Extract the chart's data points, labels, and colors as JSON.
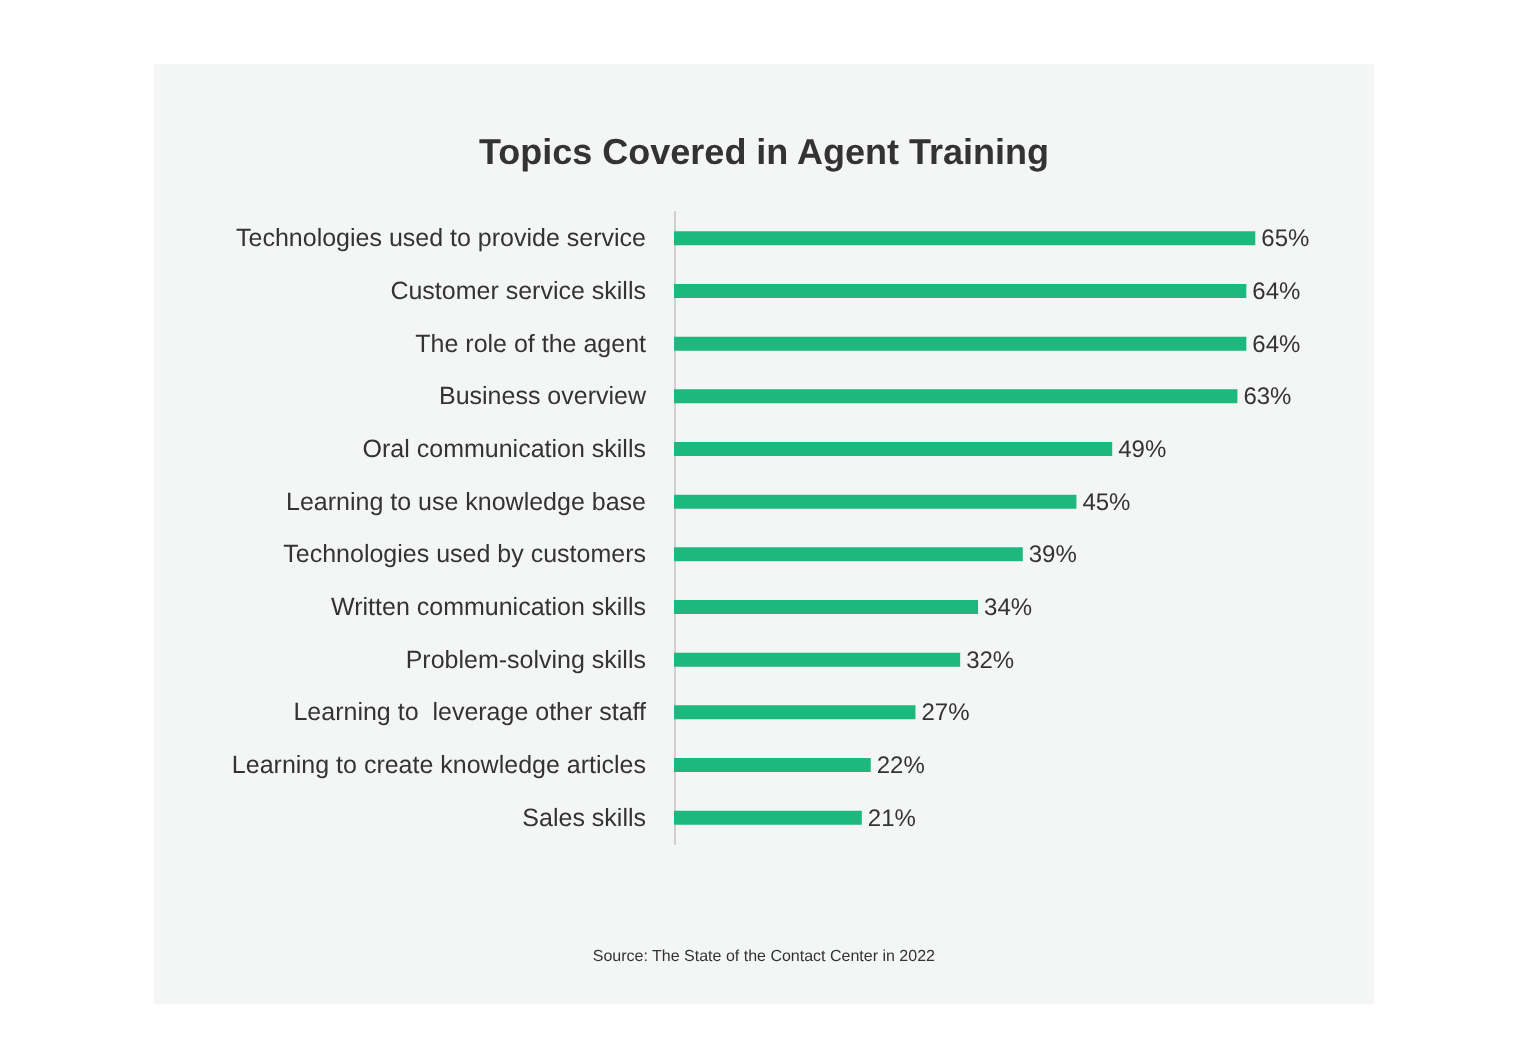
{
  "chart_data": {
    "type": "bar",
    "orientation": "horizontal",
    "title": "Topics Covered in Agent Training",
    "categories": [
      "Technologies used to provide service",
      "Customer service skills",
      "The role of the agent",
      "Business overview",
      "Oral communication skills",
      "Learning to use knowledge base",
      "Technologies used by customers",
      "Written communication skills",
      "Problem-solving skills",
      "Learning to  leverage other staff",
      "Learning to create knowledge articles",
      "Sales skills"
    ],
    "values": [
      65,
      64,
      64,
      63,
      49,
      45,
      39,
      34,
      32,
      27,
      22,
      21
    ],
    "value_labels": [
      "65%",
      "64%",
      "64%",
      "63%",
      "49%",
      "45%",
      "39%",
      "34%",
      "32%",
      "27%",
      "22%",
      "21%"
    ],
    "color": "#1db87e",
    "grid": false,
    "annotations": [
      "Source: The State of the Contact Center in 2022"
    ]
  }
}
